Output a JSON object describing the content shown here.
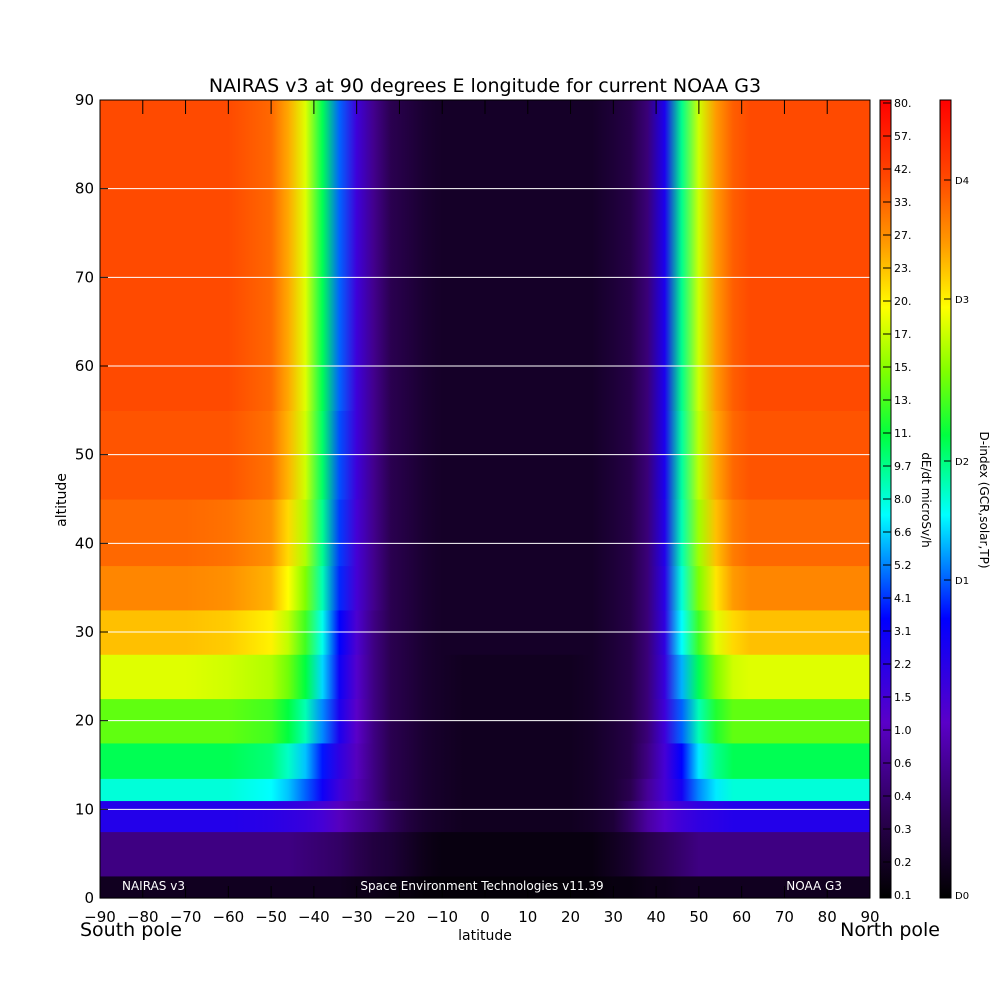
{
  "chart_data": {
    "type": "heatmap",
    "title": "NAIRAS v3 at 90 degrees E longitude for current NOAA G3",
    "xlabel": "latitude",
    "ylabel": "altitude",
    "xlim": [
      -90,
      90
    ],
    "ylim": [
      0,
      90
    ],
    "x_ticks": [
      "-90",
      "-80",
      "-70",
      "-60",
      "-50",
      "-40",
      "-30",
      "-20",
      "-10",
      "0",
      "10",
      "20",
      "30",
      "40",
      "50",
      "60",
      "70",
      "80",
      "90"
    ],
    "y_ticks": [
      "0",
      "10",
      "20",
      "30",
      "40",
      "50",
      "60",
      "70",
      "80",
      "90"
    ],
    "grid": "horizontal lines at 10, 20, 30, 40, 50, 60, 70, 80",
    "corner_labels": {
      "left": "South pole",
      "right": "North pole"
    },
    "annotations": {
      "left": "NAIRAS v3",
      "center": "Space Environment Technologies v11.39",
      "right": "NOAA G3"
    },
    "colorbar_dose": {
      "label": "dE/dt microSv/h",
      "ticks": [
        "0.1",
        "0.2",
        "0.3",
        "0.4",
        "0.6",
        "1.0",
        "1.5",
        "2.2",
        "3.1",
        "4.1",
        "5.2",
        "6.6",
        "8.0",
        "9.7",
        "11.",
        "13.",
        "15.",
        "17.",
        "20.",
        "23.",
        "27.",
        "33.",
        "42.",
        "57.",
        "80."
      ]
    },
    "colorbar_dindex": {
      "label": "D-index (GCR,solar,TP)",
      "ticks": [
        "D0",
        "D1",
        "D2",
        "D3",
        "D4"
      ]
    },
    "series": [
      {
        "lat": [
          -90,
          -80,
          -70,
          -60,
          -50,
          -46,
          -42,
          -38,
          -34,
          -30,
          -26,
          -22,
          -18,
          -14,
          -10,
          -5,
          0,
          5,
          10,
          15,
          20,
          25,
          30,
          34,
          38,
          42,
          46,
          50,
          54,
          58,
          62,
          70,
          80,
          90
        ],
        "value_fraction_at_altitude": [
          {
            "alt": 0,
            "values": [
              0.04,
              0.04,
              0.04,
              0.04,
              0.04,
              0.04,
              0.04,
              0.04,
              0.04,
              0.03,
              0.03,
              0.02,
              0.02,
              0.01,
              0.01,
              0.01,
              0.01,
              0.01,
              0.01,
              0.01,
              0.01,
              0.01,
              0.02,
              0.02,
              0.03,
              0.03,
              0.04,
              0.04,
              0.04,
              0.04,
              0.04,
              0.04,
              0.04,
              0.04
            ]
          },
          {
            "alt": 5,
            "values": [
              0.15,
              0.15,
              0.15,
              0.15,
              0.15,
              0.15,
              0.14,
              0.13,
              0.12,
              0.1,
              0.08,
              0.07,
              0.05,
              0.03,
              0.02,
              0.02,
              0.02,
              0.02,
              0.02,
              0.02,
              0.02,
              0.02,
              0.04,
              0.06,
              0.09,
              0.11,
              0.13,
              0.15,
              0.15,
              0.15,
              0.15,
              0.15,
              0.15,
              0.15
            ]
          },
          {
            "alt": 10,
            "values": [
              0.3,
              0.3,
              0.3,
              0.3,
              0.29,
              0.28,
              0.27,
              0.25,
              0.21,
              0.18,
              0.15,
              0.11,
              0.08,
              0.06,
              0.05,
              0.04,
              0.04,
              0.04,
              0.04,
              0.04,
              0.04,
              0.05,
              0.07,
              0.12,
              0.18,
              0.23,
              0.26,
              0.28,
              0.29,
              0.3,
              0.3,
              0.3,
              0.3,
              0.3
            ]
          },
          {
            "alt": 12,
            "values": [
              0.5,
              0.5,
              0.5,
              0.5,
              0.48,
              0.45,
              0.4,
              0.33,
              0.26,
              0.2,
              0.15,
              0.1,
              0.08,
              0.06,
              0.05,
              0.04,
              0.04,
              0.04,
              0.04,
              0.04,
              0.04,
              0.05,
              0.07,
              0.1,
              0.17,
              0.25,
              0.32,
              0.42,
              0.47,
              0.5,
              0.5,
              0.5,
              0.5,
              0.5
            ]
          },
          {
            "alt": 15,
            "values": [
              0.57,
              0.57,
              0.57,
              0.57,
              0.55,
              0.51,
              0.45,
              0.36,
              0.28,
              0.21,
              0.15,
              0.1,
              0.08,
              0.06,
              0.05,
              0.04,
              0.04,
              0.04,
              0.04,
              0.04,
              0.04,
              0.05,
              0.07,
              0.09,
              0.15,
              0.25,
              0.35,
              0.47,
              0.54,
              0.57,
              0.57,
              0.57,
              0.57,
              0.57
            ]
          },
          {
            "alt": 20,
            "values": [
              0.64,
              0.64,
              0.64,
              0.64,
              0.62,
              0.58,
              0.52,
              0.42,
              0.31,
              0.22,
              0.15,
              0.1,
              0.08,
              0.06,
              0.05,
              0.04,
              0.04,
              0.04,
              0.04,
              0.04,
              0.04,
              0.05,
              0.07,
              0.09,
              0.14,
              0.26,
              0.4,
              0.52,
              0.6,
              0.64,
              0.64,
              0.64,
              0.64,
              0.64
            ]
          },
          {
            "alt": 25,
            "values": [
              0.72,
              0.72,
              0.72,
              0.71,
              0.69,
              0.65,
              0.58,
              0.46,
              0.33,
              0.23,
              0.15,
              0.1,
              0.08,
              0.06,
              0.05,
              0.04,
              0.04,
              0.04,
              0.04,
              0.04,
              0.04,
              0.05,
              0.07,
              0.09,
              0.14,
              0.27,
              0.44,
              0.57,
              0.66,
              0.71,
              0.72,
              0.72,
              0.72,
              0.72
            ]
          },
          {
            "alt": 30,
            "values": [
              0.79,
              0.79,
              0.79,
              0.78,
              0.75,
              0.7,
              0.62,
              0.49,
              0.35,
              0.24,
              0.15,
              0.1,
              0.08,
              0.06,
              0.05,
              0.05,
              0.05,
              0.05,
              0.05,
              0.05,
              0.05,
              0.05,
              0.07,
              0.09,
              0.14,
              0.28,
              0.48,
              0.62,
              0.72,
              0.77,
              0.79,
              0.79,
              0.79,
              0.79
            ]
          },
          {
            "alt": 35,
            "values": [
              0.84,
              0.84,
              0.84,
              0.83,
              0.8,
              0.74,
              0.66,
              0.52,
              0.37,
              0.25,
              0.16,
              0.1,
              0.08,
              0.06,
              0.05,
              0.05,
              0.05,
              0.05,
              0.05,
              0.05,
              0.05,
              0.05,
              0.07,
              0.09,
              0.14,
              0.29,
              0.5,
              0.66,
              0.76,
              0.82,
              0.84,
              0.84,
              0.84,
              0.84
            ]
          },
          {
            "alt": 40,
            "values": [
              0.87,
              0.87,
              0.87,
              0.86,
              0.83,
              0.77,
              0.69,
              0.54,
              0.38,
              0.25,
              0.16,
              0.1,
              0.08,
              0.06,
              0.05,
              0.05,
              0.05,
              0.05,
              0.05,
              0.05,
              0.05,
              0.05,
              0.07,
              0.09,
              0.14,
              0.3,
              0.52,
              0.68,
              0.79,
              0.85,
              0.87,
              0.87,
              0.87,
              0.87
            ]
          },
          {
            "alt": 50,
            "values": [
              0.89,
              0.89,
              0.89,
              0.89,
              0.86,
              0.8,
              0.71,
              0.56,
              0.39,
              0.26,
              0.16,
              0.1,
              0.08,
              0.06,
              0.05,
              0.05,
              0.05,
              0.05,
              0.05,
              0.05,
              0.05,
              0.05,
              0.07,
              0.09,
              0.14,
              0.31,
              0.53,
              0.7,
              0.81,
              0.87,
              0.89,
              0.89,
              0.89,
              0.89
            ]
          },
          {
            "alt": 60,
            "values": [
              0.9,
              0.9,
              0.9,
              0.9,
              0.87,
              0.81,
              0.72,
              0.57,
              0.4,
              0.26,
              0.16,
              0.1,
              0.08,
              0.06,
              0.05,
              0.05,
              0.05,
              0.05,
              0.05,
              0.05,
              0.05,
              0.05,
              0.07,
              0.09,
              0.14,
              0.31,
              0.54,
              0.71,
              0.82,
              0.88,
              0.9,
              0.9,
              0.9,
              0.9
            ]
          },
          {
            "alt": 70,
            "values": [
              0.9,
              0.9,
              0.9,
              0.9,
              0.87,
              0.81,
              0.72,
              0.57,
              0.4,
              0.26,
              0.16,
              0.1,
              0.08,
              0.06,
              0.05,
              0.05,
              0.05,
              0.05,
              0.05,
              0.05,
              0.05,
              0.05,
              0.07,
              0.09,
              0.14,
              0.31,
              0.54,
              0.71,
              0.82,
              0.88,
              0.9,
              0.9,
              0.9,
              0.9
            ]
          },
          {
            "alt": 80,
            "values": [
              0.9,
              0.9,
              0.9,
              0.9,
              0.87,
              0.81,
              0.72,
              0.57,
              0.4,
              0.26,
              0.16,
              0.1,
              0.08,
              0.06,
              0.05,
              0.05,
              0.05,
              0.05,
              0.05,
              0.05,
              0.05,
              0.05,
              0.07,
              0.09,
              0.14,
              0.31,
              0.54,
              0.71,
              0.82,
              0.88,
              0.9,
              0.9,
              0.9,
              0.9
            ]
          },
          {
            "alt": 90,
            "values": [
              0.9,
              0.9,
              0.9,
              0.9,
              0.87,
              0.81,
              0.72,
              0.57,
              0.4,
              0.26,
              0.16,
              0.1,
              0.08,
              0.06,
              0.05,
              0.05,
              0.05,
              0.05,
              0.05,
              0.05,
              0.05,
              0.05,
              0.07,
              0.09,
              0.14,
              0.31,
              0.54,
              0.71,
              0.82,
              0.88,
              0.9,
              0.9,
              0.9,
              0.9
            ]
          }
        ]
      }
    ]
  }
}
